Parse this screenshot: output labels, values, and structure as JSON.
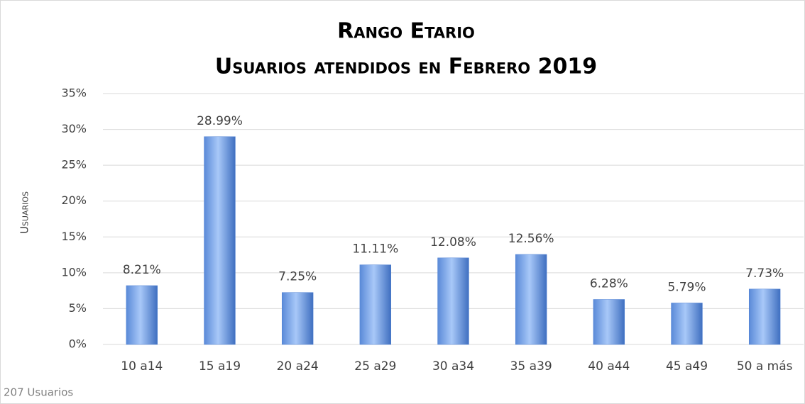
{
  "chart_data": {
    "type": "bar",
    "title": "Rango Etario",
    "subtitle": "Usuarios atendidos en Febrero 2019",
    "y_label": "Usuarios",
    "note": "207 Usuarios",
    "categories": [
      "10 a14",
      "15 a19",
      "20 a24",
      "25 a29",
      "30 a34",
      "35 a39",
      "40 a44",
      "45 a49",
      "50 a más"
    ],
    "values": [
      8.21,
      28.99,
      7.25,
      11.11,
      12.08,
      12.56,
      6.28,
      5.79,
      7.73
    ],
    "value_labels": [
      "8.21%",
      "28.99%",
      "7.25%",
      "11.11%",
      "12.08%",
      "12.56%",
      "6.28%",
      "5.79%",
      "7.73%"
    ],
    "color": "#4f81d4",
    "ylim": [
      0,
      35
    ],
    "yticks": [
      {
        "value": 0,
        "label": "0%"
      },
      {
        "value": 5,
        "label": "5%"
      },
      {
        "value": 10,
        "label": "10%"
      },
      {
        "value": 15,
        "label": "15%"
      },
      {
        "value": 20,
        "label": "20%"
      },
      {
        "value": 25,
        "label": "25%"
      },
      {
        "value": 30,
        "label": "30%"
      },
      {
        "value": 35,
        "label": "35%"
      }
    ],
    "grid": true
  }
}
